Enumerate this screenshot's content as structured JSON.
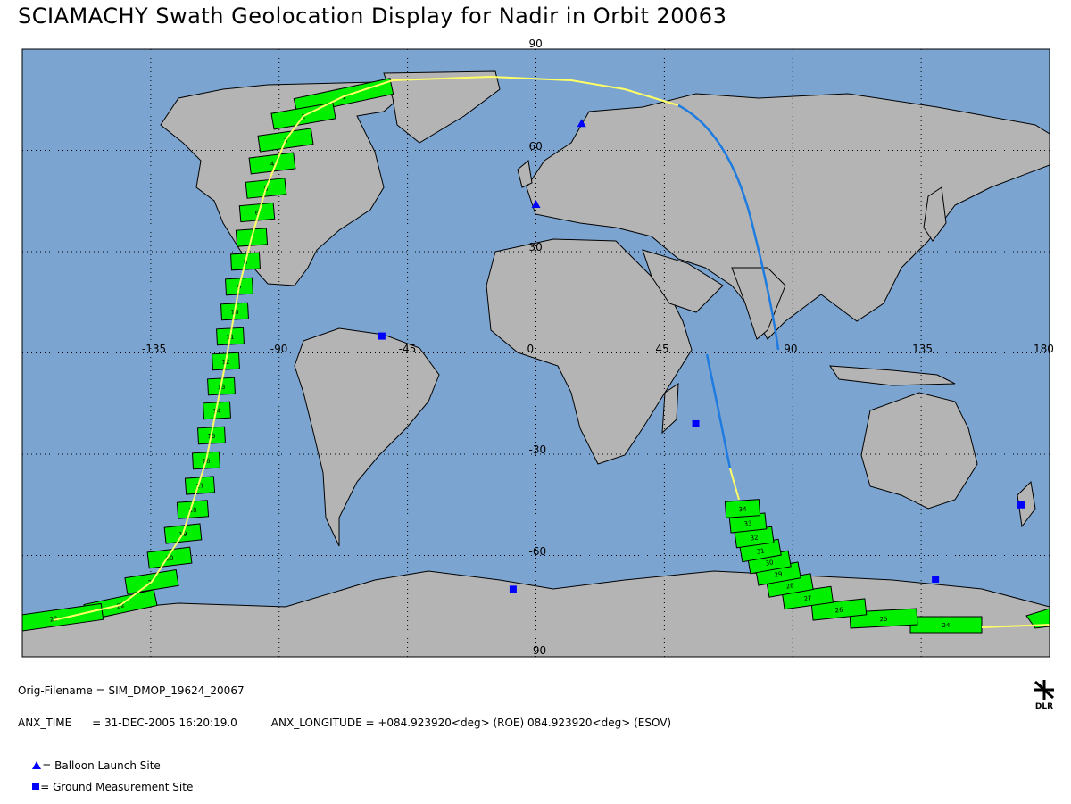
{
  "title": "SCIAMACHY Swath Geolocation Display for Nadir in Orbit 20063",
  "map": {
    "lon_range": [
      -180,
      180
    ],
    "lat_range": [
      -90,
      90
    ],
    "grid_lon_step": 45,
    "grid_lat_step": 30,
    "lon_labels": [
      "-135",
      "-90",
      "-45",
      "0",
      "45",
      "90",
      "135",
      "180"
    ],
    "lat_labels": [
      "90",
      "60",
      "30",
      "-30",
      "-60",
      "-90"
    ],
    "colors": {
      "ocean": "#7ba4d0",
      "land": "#b4b4b4",
      "swath": "#00f000",
      "ground_track": "#ffff66",
      "orbit_track_dark": "#1e7be0",
      "marker": "#0000ff"
    }
  },
  "swath_labels": [
    "1",
    "2",
    "3",
    "4",
    "5",
    "6",
    "7",
    "8",
    "9",
    "10",
    "11",
    "12",
    "13",
    "14",
    "15",
    "16",
    "17",
    "18",
    "19",
    "20",
    "21",
    "22",
    "23",
    "24",
    "25",
    "26",
    "27",
    "28",
    "29",
    "30",
    "31",
    "32",
    "33",
    "34"
  ],
  "sites": {
    "balloon": [
      {
        "lon": 16,
        "lat": 68
      },
      {
        "lon": 0,
        "lat": 44
      }
    ],
    "ground": [
      {
        "lon": -54,
        "lat": 5
      },
      {
        "lon": 56,
        "lat": -21
      },
      {
        "lon": -8,
        "lat": -70
      },
      {
        "lon": 140,
        "lat": -67
      },
      {
        "lon": 170,
        "lat": -45
      }
    ]
  },
  "footer": {
    "orig_filename": "Orig-Filename = SIM_DMOP_19624_20067",
    "anx_time": "ANX_TIME      = 31-DEC-2005 16:20:19.0",
    "anx_longitude": "ANX_LONGITUDE = +084.923920<deg> (ROE) 084.923920<deg> (ESOV)",
    "legend_balloon": "= Balloon Launch Site",
    "legend_ground": "= Ground Measurement Site"
  },
  "logo_text": "DLR"
}
